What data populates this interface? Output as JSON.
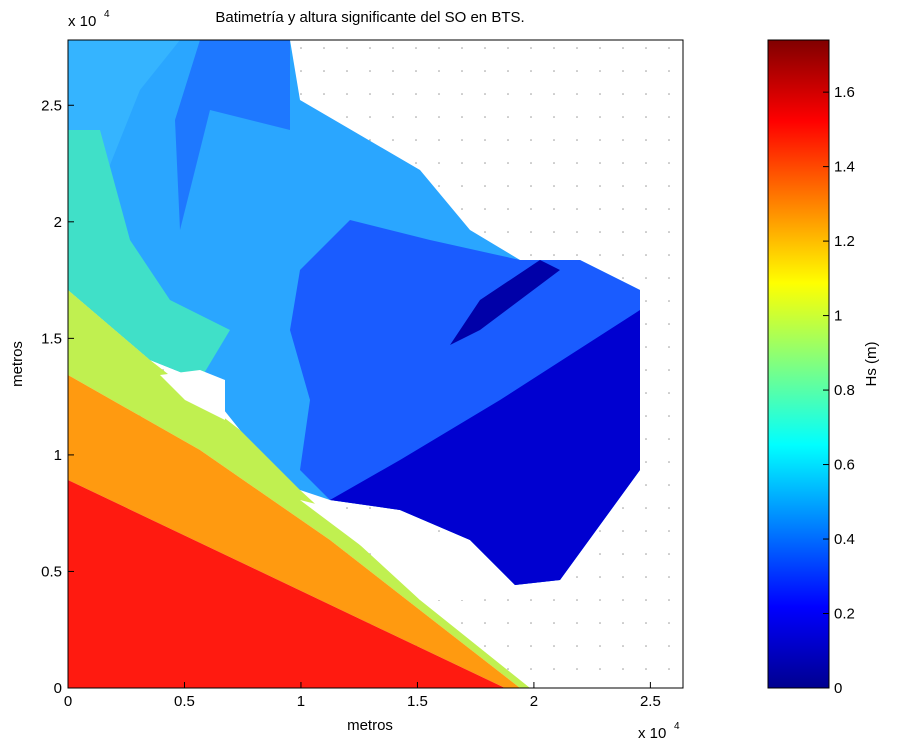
{
  "chart_data": {
    "type": "contour",
    "title": "Batimetría y altura significante del SO en BTS.",
    "x_label": "metros",
    "y_label": "metros",
    "colorbar_label": "Hs (m)",
    "x_exponent": "x 10",
    "y_exponent": "x 10",
    "exponent_power": "4",
    "xlim": [
      0,
      26400
    ],
    "ylim": [
      0,
      27800
    ],
    "xticks": [
      0,
      {
        "value": 5000,
        "label": "0.5"
      },
      {
        "value": 10000,
        "label": "1"
      },
      {
        "value": 15000,
        "label": "1.5"
      },
      {
        "value": 20000,
        "label": "2"
      },
      {
        "value": 25000,
        "label": "2.5"
      }
    ],
    "yticks": [
      0,
      {
        "value": 5000,
        "label": "0.5"
      },
      {
        "value": 10000,
        "label": "1"
      },
      {
        "value": 15000,
        "label": "1.5"
      },
      {
        "value": 20000,
        "label": "2"
      },
      {
        "value": 25000,
        "label": "2.5"
      }
    ],
    "clim": [
      0,
      1.74
    ],
    "cticks": [
      0,
      0.2,
      0.4,
      0.6,
      0.8,
      1,
      1.2,
      1.4,
      1.6
    ],
    "colormap": [
      "#00008f",
      "#0000ff",
      "#0080ff",
      "#00ffff",
      "#80ff80",
      "#ffff00",
      "#ff8000",
      "#ff0000",
      "#800000"
    ]
  }
}
